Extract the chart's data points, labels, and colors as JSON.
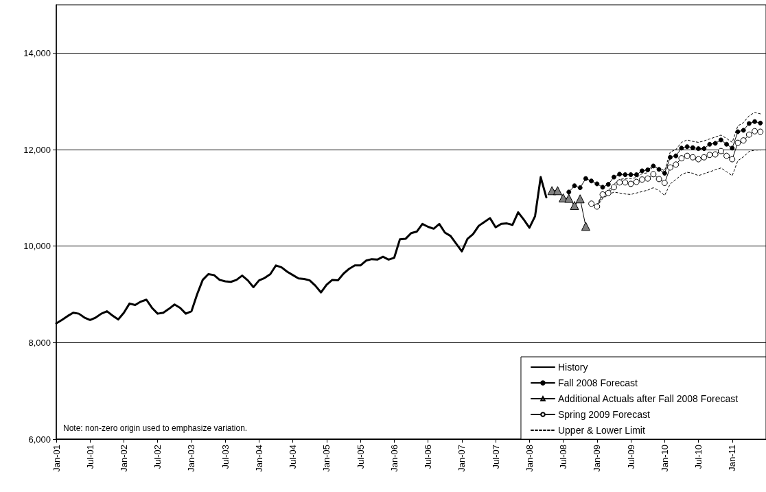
{
  "chart_data": {
    "type": "line",
    "categories": [
      "Jan-01",
      null,
      null,
      null,
      null,
      null,
      "Jul-01",
      null,
      null,
      null,
      null,
      null,
      "Jan-02",
      null,
      null,
      null,
      null,
      null,
      "Jul-02",
      null,
      null,
      null,
      null,
      null,
      "Jan-03",
      null,
      null,
      null,
      null,
      null,
      "Jul-03",
      null,
      null,
      null,
      null,
      null,
      "Jan-04",
      null,
      null,
      null,
      null,
      null,
      "Jul-04",
      null,
      null,
      null,
      null,
      null,
      "Jan-05",
      null,
      null,
      null,
      null,
      null,
      "Jul-05",
      null,
      null,
      null,
      null,
      null,
      "Jan-06",
      null,
      null,
      null,
      null,
      null,
      "Jul-06",
      null,
      null,
      null,
      null,
      null,
      "Jan-07",
      null,
      null,
      null,
      null,
      null,
      "Jul-07",
      null,
      null,
      null,
      null,
      null,
      "Jan-08",
      null,
      null,
      null,
      null,
      null,
      "Jul-08",
      null,
      null,
      null,
      null,
      null,
      "Jan-09",
      null,
      null,
      null,
      null,
      null,
      "Jul-09",
      null,
      null,
      null,
      null,
      null,
      "Jan-10",
      null,
      null,
      null,
      null,
      null,
      "Jul-10",
      null,
      null,
      null,
      null,
      null,
      "Jan-11",
      null,
      null,
      null,
      null,
      null
    ],
    "series": [
      {
        "name": "History",
        "color": "#000000",
        "marker": "none",
        "line_style": "solid",
        "values": [
          8400,
          8470,
          8550,
          8620,
          8600,
          8520,
          8470,
          8520,
          8600,
          8650,
          8560,
          8480,
          8620,
          8810,
          8780,
          8850,
          8890,
          8720,
          8600,
          8620,
          8700,
          8790,
          8720,
          8600,
          8650,
          9000,
          9300,
          9420,
          9400,
          9300,
          9270,
          9260,
          9300,
          9390,
          9290,
          9150,
          9290,
          9340,
          9420,
          9600,
          9560,
          9470,
          9400,
          9330,
          9320,
          9290,
          9180,
          9040,
          9200,
          9300,
          9290,
          9430,
          9530,
          9600,
          9600,
          9700,
          9730,
          9720,
          9780,
          9720,
          9760,
          10140,
          10150,
          10270,
          10300,
          10460,
          10400,
          10360,
          10460,
          10280,
          10210,
          10050,
          9890,
          10150,
          10250,
          10420,
          10500,
          10580,
          10390,
          10460,
          10470,
          10440,
          10700,
          10550,
          10380,
          10620,
          11430,
          11010,
          null,
          null,
          null,
          null,
          null,
          null,
          null,
          null,
          null,
          null,
          null,
          null,
          null,
          null,
          null,
          null,
          null,
          null,
          null,
          null,
          null,
          null,
          null,
          null,
          null,
          null,
          null,
          null,
          null,
          null,
          null,
          null,
          null,
          null,
          null,
          null,
          null,
          null
        ]
      },
      {
        "name": "Fall 2008 Forecast",
        "color": "#000000",
        "marker": "circle",
        "line_style": "solid",
        "values": [
          null,
          null,
          null,
          null,
          null,
          null,
          null,
          null,
          null,
          null,
          null,
          null,
          null,
          null,
          null,
          null,
          null,
          null,
          null,
          null,
          null,
          null,
          null,
          null,
          null,
          null,
          null,
          null,
          null,
          null,
          null,
          null,
          null,
          null,
          null,
          null,
          null,
          null,
          null,
          null,
          null,
          null,
          null,
          null,
          null,
          null,
          null,
          null,
          null,
          null,
          null,
          null,
          null,
          null,
          null,
          null,
          null,
          null,
          null,
          null,
          null,
          null,
          null,
          null,
          null,
          null,
          null,
          null,
          null,
          null,
          null,
          null,
          null,
          null,
          null,
          null,
          null,
          null,
          null,
          null,
          null,
          null,
          null,
          null,
          null,
          null,
          null,
          null,
          null,
          null,
          null,
          11120,
          11250,
          11210,
          11400,
          11350,
          11290,
          11220,
          11280,
          11430,
          11490,
          11480,
          11480,
          11480,
          11560,
          11580,
          11660,
          11590,
          11510,
          11840,
          11870,
          12030,
          12060,
          12040,
          12020,
          12020,
          12110,
          12130,
          12200,
          12110,
          12030,
          12370,
          12400,
          12540,
          12580,
          12550
        ]
      },
      {
        "name": "Additional Actuals after Fall 2008 Forecast",
        "color": "#808080",
        "marker": "triangle",
        "line_style": "solid",
        "values": [
          null,
          null,
          null,
          null,
          null,
          null,
          null,
          null,
          null,
          null,
          null,
          null,
          null,
          null,
          null,
          null,
          null,
          null,
          null,
          null,
          null,
          null,
          null,
          null,
          null,
          null,
          null,
          null,
          null,
          null,
          null,
          null,
          null,
          null,
          null,
          null,
          null,
          null,
          null,
          null,
          null,
          null,
          null,
          null,
          null,
          null,
          null,
          null,
          null,
          null,
          null,
          null,
          null,
          null,
          null,
          null,
          null,
          null,
          null,
          null,
          null,
          null,
          null,
          null,
          null,
          null,
          null,
          null,
          null,
          null,
          null,
          null,
          null,
          null,
          null,
          null,
          null,
          null,
          null,
          null,
          null,
          null,
          null,
          null,
          null,
          null,
          null,
          null,
          11150,
          11150,
          11000,
          10990,
          10840,
          10980,
          10410,
          null,
          null,
          null,
          null,
          null,
          null,
          null,
          null,
          null,
          null,
          null,
          null,
          null,
          null,
          null,
          null,
          null,
          null,
          null,
          null,
          null,
          null,
          null,
          null,
          null,
          null,
          null,
          null,
          null,
          null,
          null
        ]
      },
      {
        "name": "Spring 2009 Forecast",
        "color": "#ffffff",
        "marker": "circle",
        "line_style": "solid",
        "values": [
          null,
          null,
          null,
          null,
          null,
          null,
          null,
          null,
          null,
          null,
          null,
          null,
          null,
          null,
          null,
          null,
          null,
          null,
          null,
          null,
          null,
          null,
          null,
          null,
          null,
          null,
          null,
          null,
          null,
          null,
          null,
          null,
          null,
          null,
          null,
          null,
          null,
          null,
          null,
          null,
          null,
          null,
          null,
          null,
          null,
          null,
          null,
          null,
          null,
          null,
          null,
          null,
          null,
          null,
          null,
          null,
          null,
          null,
          null,
          null,
          null,
          null,
          null,
          null,
          null,
          null,
          null,
          null,
          null,
          null,
          null,
          null,
          null,
          null,
          null,
          null,
          null,
          null,
          null,
          null,
          null,
          null,
          null,
          null,
          null,
          null,
          null,
          null,
          null,
          null,
          null,
          null,
          null,
          null,
          null,
          10880,
          10820,
          11070,
          11100,
          11220,
          11320,
          11320,
          11290,
          11330,
          11380,
          11400,
          11490,
          11390,
          11310,
          11630,
          11690,
          11820,
          11870,
          11840,
          11800,
          11840,
          11890,
          11900,
          11970,
          11870,
          11800,
          12140,
          12190,
          12310,
          12380,
          12370
        ]
      },
      {
        "name": "Upper & Lower Limit",
        "color": "#000000",
        "marker": "none",
        "line_style": "dashed",
        "values": [
          null,
          null,
          null,
          null,
          null,
          null,
          null,
          null,
          null,
          null,
          null,
          null,
          null,
          null,
          null,
          null,
          null,
          null,
          null,
          null,
          null,
          null,
          null,
          null,
          null,
          null,
          null,
          null,
          null,
          null,
          null,
          null,
          null,
          null,
          null,
          null,
          null,
          null,
          null,
          null,
          null,
          null,
          null,
          null,
          null,
          null,
          null,
          null,
          null,
          null,
          null,
          null,
          null,
          null,
          null,
          null,
          null,
          null,
          null,
          null,
          null,
          null,
          null,
          null,
          null,
          null,
          null,
          null,
          null,
          null,
          null,
          null,
          null,
          null,
          null,
          null,
          null,
          null,
          null,
          null,
          null,
          null,
          null,
          null,
          null,
          null,
          null,
          null,
          null,
          null,
          null,
          null,
          null,
          null,
          null,
          null,
          10850,
          11100,
          11150,
          11280,
          11380,
          11400,
          11400,
          11420,
          11500,
          11520,
          11650,
          11620,
          11560,
          11950,
          12000,
          12150,
          12200,
          12170,
          12150,
          12180,
          12220,
          12260,
          12300,
          12230,
          12150,
          12490,
          12560,
          12700,
          12770,
          12740
        ]
      },
      {
        "color": "#000000",
        "marker": "none",
        "line_style": "dashed",
        "values": [
          null,
          null,
          null,
          null,
          null,
          null,
          null,
          null,
          null,
          null,
          null,
          null,
          null,
          null,
          null,
          null,
          null,
          null,
          null,
          null,
          null,
          null,
          null,
          null,
          null,
          null,
          null,
          null,
          null,
          null,
          null,
          null,
          null,
          null,
          null,
          null,
          null,
          null,
          null,
          null,
          null,
          null,
          null,
          null,
          null,
          null,
          null,
          null,
          null,
          null,
          null,
          null,
          null,
          null,
          null,
          null,
          null,
          null,
          null,
          null,
          null,
          null,
          null,
          null,
          null,
          null,
          null,
          null,
          null,
          null,
          null,
          null,
          null,
          null,
          null,
          null,
          null,
          null,
          null,
          null,
          null,
          null,
          null,
          null,
          null,
          null,
          null,
          null,
          null,
          null,
          null,
          null,
          null,
          null,
          null,
          null,
          10820,
          10990,
          11060,
          11120,
          11100,
          11080,
          11070,
          11100,
          11130,
          11160,
          11210,
          11150,
          11050,
          11290,
          11380,
          11480,
          11530,
          11510,
          11460,
          11500,
          11540,
          11580,
          11620,
          11540,
          11460,
          11770,
          11850,
          11960,
          11990,
          11990
        ]
      }
    ],
    "ylim": [
      6000,
      15000
    ],
    "yticks": [
      {
        "value": 6000,
        "label": "6,000"
      },
      {
        "value": 8000,
        "label": "8,000"
      },
      {
        "value": 10000,
        "label": "10,000"
      },
      {
        "value": 12000,
        "label": "12,000"
      },
      {
        "value": 14000,
        "label": "14,000"
      }
    ],
    "grid": "y",
    "legend": "bottom right",
    "annotations": [
      "Note: non-zero origin used to emphasize variation."
    ]
  }
}
